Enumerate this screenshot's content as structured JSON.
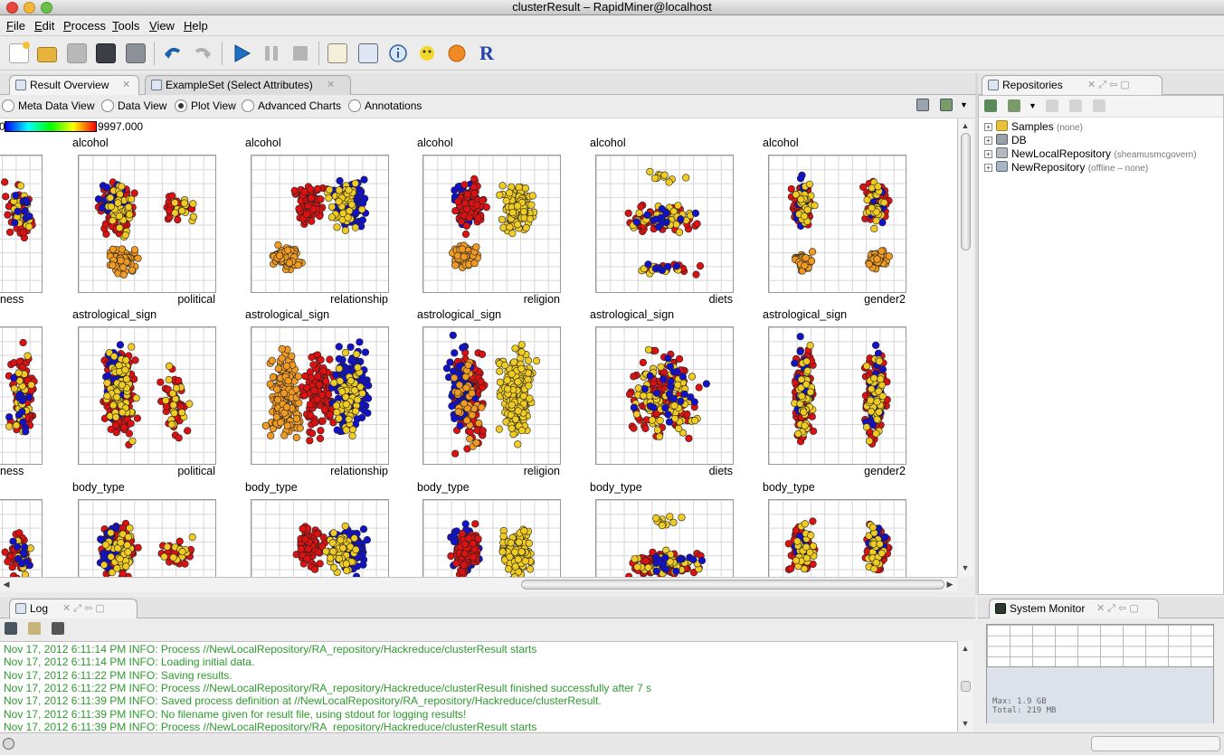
{
  "window": {
    "title": "clusterResult – RapidMiner@localhost"
  },
  "menu": [
    "File",
    "Edit",
    "Process",
    "Tools",
    "View",
    "Help"
  ],
  "menu_mnemonics": [
    "F",
    "E",
    "P",
    "T",
    "V",
    "H"
  ],
  "toolbar": {
    "icons": [
      "new-process-icon",
      "open-process-icon",
      "save-icon",
      "save-as-icon",
      "save-as-building-block-icon",
      "undo-icon",
      "redo-icon",
      "run-icon",
      "pause-icon",
      "stop-icon",
      "design-perspective-icon",
      "result-perspective-icon",
      "welcome-perspective-icon",
      "wizard-icon",
      "marketplace-icon",
      "r-perspective-icon"
    ]
  },
  "result_tabs": [
    {
      "label": "Result Overview",
      "icon": "result-overview-icon",
      "active": true
    },
    {
      "label": "ExampleSet (Select Attributes)",
      "icon": "exampleset-icon",
      "active": false
    }
  ],
  "view_options": [
    {
      "label": "Meta Data View",
      "selected": false
    },
    {
      "label": "Data View",
      "selected": false
    },
    {
      "label": "Plot View",
      "selected": true
    },
    {
      "label": "Advanced Charts",
      "selected": false
    },
    {
      "label": "Annotations",
      "selected": false
    }
  ],
  "color_scale": {
    "min_label": "0",
    "max_label": "9997.000",
    "colors": [
      "#0000ff",
      "#00ffff",
      "#00ff00",
      "#ffff00",
      "#ff0000"
    ]
  },
  "scatter_matrix": {
    "rows": [
      "alcohol",
      "astrological_sign",
      "body_type"
    ],
    "columns": [
      "ness",
      "political",
      "relationship",
      "religion",
      "diets",
      "gender2"
    ],
    "cluster_colors": {
      "red": "#dd1111",
      "blue": "#1111cc",
      "yellow": "#f0cc22",
      "orange": "#f09a22"
    }
  },
  "repositories": {
    "tab_label": "Repositories",
    "items": [
      {
        "name": "Samples",
        "note": "(none)",
        "icon": "folder-icon"
      },
      {
        "name": "DB",
        "note": "",
        "icon": "database-icon"
      },
      {
        "name": "NewLocalRepository",
        "note": "(sheamusmcgovern)",
        "icon": "local-repository-icon"
      },
      {
        "name": "NewRepository",
        "note": "(offline – none)",
        "icon": "remote-repository-icon"
      }
    ]
  },
  "log": {
    "tab_label": "Log",
    "lines": [
      "Nov 17, 2012 6:11:14 PM INFO: Process //NewLocalRepository/RA_repository/Hackreduce/clusterResult starts",
      "Nov 17, 2012 6:11:14 PM INFO: Loading initial data.",
      "Nov 17, 2012 6:11:22 PM INFO: Saving results.",
      "Nov 17, 2012 6:11:22 PM INFO: Process //NewLocalRepository/RA_repository/Hackreduce/clusterResult finished successfully after 7 s",
      "Nov 17, 2012 6:11:39 PM INFO: Saved process definition at //NewLocalRepository/RA_repository/Hackreduce/clusterResult.",
      "Nov 17, 2012 6:11:39 PM INFO: No filename given for result file, using stdout for logging results!",
      "Nov 17, 2012 6:11:39 PM INFO: Process //NewLocalRepository/RA_repository/Hackreduce/clusterResult starts"
    ]
  },
  "system_monitor": {
    "tab_label": "System Monitor",
    "max_label": "Max:",
    "max_value": "1.9 GB",
    "total_label": "Total:",
    "total_value": "219 MB"
  }
}
